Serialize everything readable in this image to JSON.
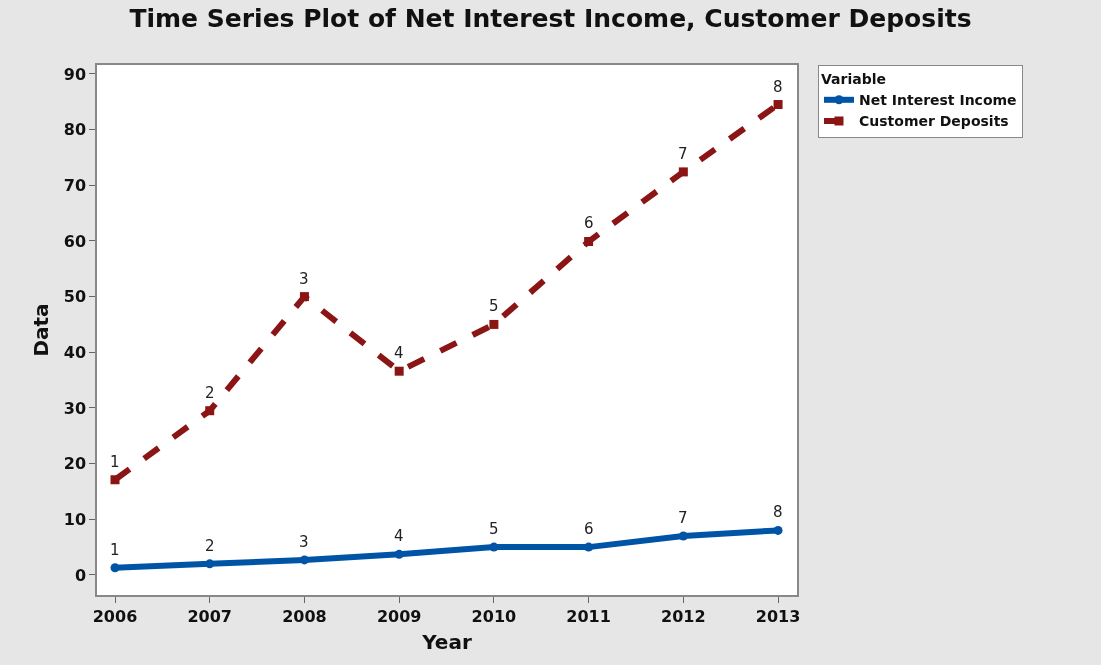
{
  "chart_data": {
    "type": "line",
    "title": "Time Series Plot of Net Interest Income, Customer Deposits",
    "xlabel": "Year",
    "ylabel": "Data",
    "legend_title": "Variable",
    "legend": "right",
    "x": [
      2006,
      2007,
      2008,
      2009,
      2010,
      2011,
      2012,
      2013
    ],
    "xlim": [
      2005.81,
      2013.2
    ],
    "xticks": [
      2006,
      2007,
      2008,
      2009,
      2010,
      2011,
      2012,
      2013
    ],
    "ylim": [
      -3.6,
      91.6
    ],
    "yticks": [
      0,
      10,
      20,
      30,
      40,
      50,
      60,
      70,
      80,
      90
    ],
    "series": [
      {
        "name": "Net Interest Income",
        "color": "#0054a6",
        "marker": "circle",
        "line_style": "solid",
        "values": [
          1.3,
          2.0,
          2.7,
          3.7,
          5.0,
          5.0,
          7.0,
          8.0
        ]
      },
      {
        "name": "Customer Deposits",
        "color": "#8b1414",
        "marker": "square",
        "line_style": "dashed",
        "values": [
          17.1,
          29.5,
          50.0,
          36.6,
          45.0,
          59.9,
          72.4,
          84.5
        ]
      }
    ],
    "annotations": [
      {
        "text": "1",
        "x": 2006,
        "y": 1.3
      },
      {
        "text": "2",
        "x": 2007,
        "y": 2.0
      },
      {
        "text": "3",
        "x": 2008,
        "y": 2.7
      },
      {
        "text": "4",
        "x": 2009,
        "y": 3.7
      },
      {
        "text": "5",
        "x": 2010,
        "y": 5.0
      },
      {
        "text": "6",
        "x": 2011,
        "y": 5.0
      },
      {
        "text": "7",
        "x": 2012,
        "y": 7.0
      },
      {
        "text": "8",
        "x": 2013,
        "y": 8.0
      },
      {
        "text": "1",
        "x": 2006,
        "y": 17.1
      },
      {
        "text": "2",
        "x": 2007,
        "y": 29.5
      },
      {
        "text": "3",
        "x": 2008,
        "y": 50.0
      },
      {
        "text": "4",
        "x": 2009,
        "y": 36.6
      },
      {
        "text": "5",
        "x": 2010,
        "y": 45.0
      },
      {
        "text": "6",
        "x": 2011,
        "y": 59.9
      },
      {
        "text": "7",
        "x": 2012,
        "y": 72.4
      },
      {
        "text": "8",
        "x": 2013,
        "y": 84.5
      }
    ]
  }
}
